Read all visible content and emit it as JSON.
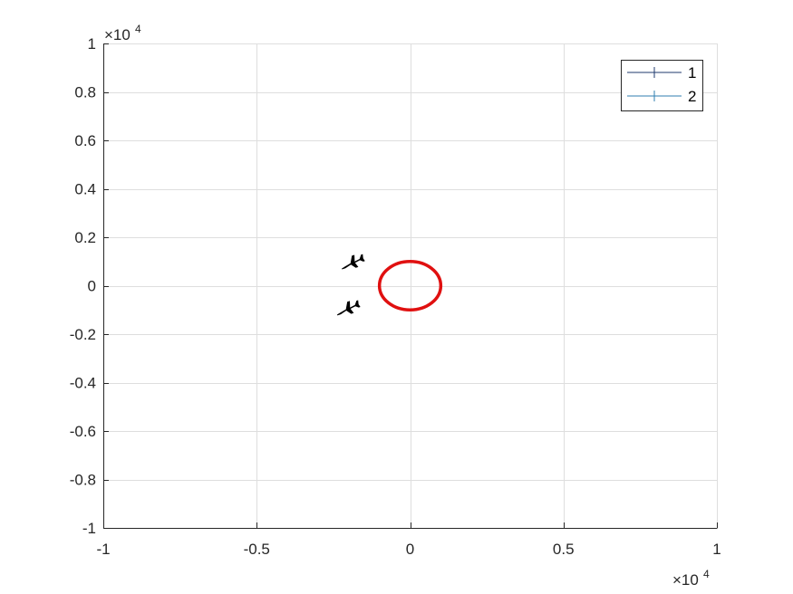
{
  "chart_data": {
    "type": "scatter",
    "title": "",
    "xlabel": "",
    "ylabel": "",
    "xlim": [
      -1,
      1
    ],
    "ylim": [
      -1,
      1
    ],
    "x_multiplier": "×10",
    "x_multiplier_exp": "4",
    "y_multiplier": "×10",
    "y_multiplier_exp": "4",
    "x_ticks": [
      {
        "value": -1,
        "label": "-1"
      },
      {
        "value": -0.5,
        "label": "-0.5"
      },
      {
        "value": 0,
        "label": "0"
      },
      {
        "value": 0.5,
        "label": "0.5"
      },
      {
        "value": 1,
        "label": "1"
      }
    ],
    "y_ticks": [
      {
        "value": -1,
        "label": "-1"
      },
      {
        "value": -0.8,
        "label": "-0.8"
      },
      {
        "value": -0.6,
        "label": "-0.6"
      },
      {
        "value": -0.4,
        "label": "-0.4"
      },
      {
        "value": -0.2,
        "label": "-0.2"
      },
      {
        "value": 0,
        "label": "0"
      },
      {
        "value": 0.2,
        "label": "0.2"
      },
      {
        "value": 0.4,
        "label": "0.4"
      },
      {
        "value": 0.6,
        "label": "0.6"
      },
      {
        "value": 0.8,
        "label": "0.8"
      },
      {
        "value": 1,
        "label": "1"
      }
    ],
    "grid": true,
    "legend_position": "top-right",
    "series": [
      {
        "name": "1",
        "color": "#1f3a6e",
        "marker": "+",
        "icon": "airplane-icon",
        "x": -0.19,
        "y": 0.1
      },
      {
        "name": "2",
        "color": "#2f7fb0",
        "marker": "+",
        "icon": "airplane-icon",
        "x": -0.205,
        "y": -0.09
      }
    ],
    "circle": {
      "center_x": 0,
      "center_y": 0,
      "radius": 0.1,
      "color": "#e01010"
    }
  }
}
